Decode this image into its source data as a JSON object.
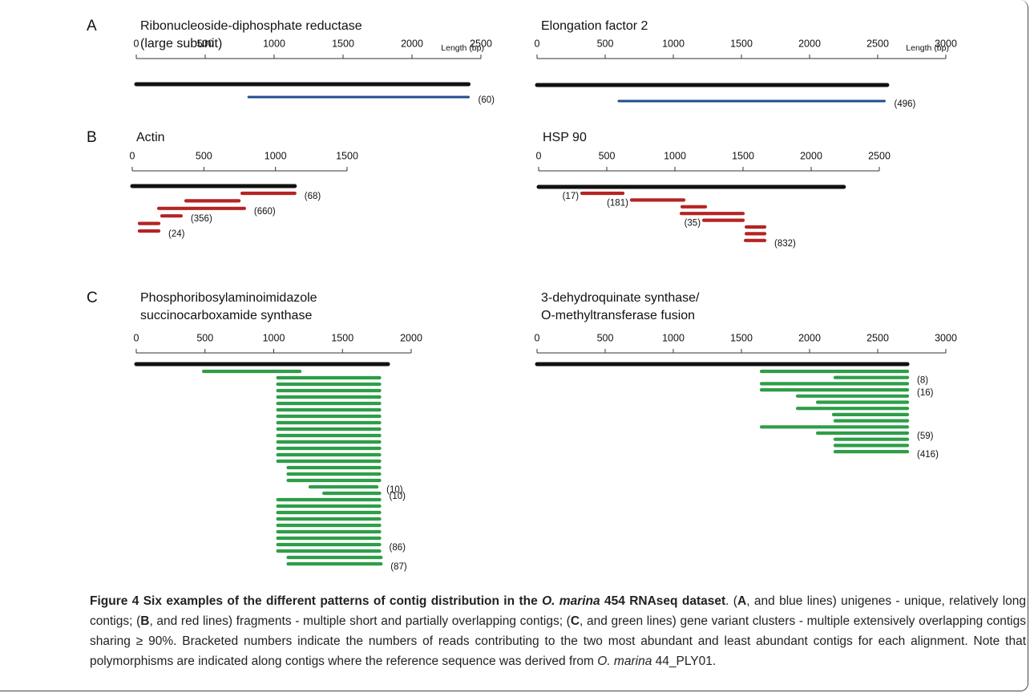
{
  "figure": {
    "panels": [
      {
        "letter": "A",
        "title": [
          "Ribonucleoside-diphosphate reductase",
          "(large subunit)"
        ],
        "length_label": "Length (bp)",
        "xlim": [
          0,
          2500
        ],
        "xticks": [
          0,
          500,
          1000,
          1500,
          2000,
          2500
        ],
        "reference": {
          "start": 0,
          "end": 2410
        },
        "color": "#1f4e8c",
        "contigs": [
          {
            "start": 815,
            "end": 2410,
            "reads": "(60)"
          }
        ]
      },
      {
        "title": [
          "Elongation factor 2"
        ],
        "length_label": "Length (bp)",
        "xlim": [
          0,
          3000
        ],
        "xticks": [
          0,
          500,
          1000,
          1500,
          2000,
          2500,
          3000
        ],
        "reference": {
          "start": 0,
          "end": 2570
        },
        "color": "#1f4e8c",
        "contigs": [
          {
            "start": 600,
            "end": 2550,
            "reads": "(496)"
          }
        ]
      },
      {
        "letter": "B",
        "title": [
          "Actin"
        ],
        "xlim": [
          0,
          1500
        ],
        "xticks": [
          0,
          500,
          1000,
          1500
        ],
        "reference": {
          "start": 0,
          "end": 1135
        },
        "color": "#b52424",
        "contigs": [
          {
            "start": 767,
            "end": 1135,
            "reads": "(68)"
          },
          {
            "start": 375,
            "end": 745
          },
          {
            "start": 185,
            "end": 783,
            "reads": "(660)"
          },
          {
            "start": 207,
            "end": 341,
            "reads": "(356)"
          },
          {
            "start": 50,
            "end": 185
          },
          {
            "start": 50,
            "end": 185,
            "reads": "(24)"
          }
        ]
      },
      {
        "title": [
          "HSP 90"
        ],
        "xlim": [
          0,
          2500
        ],
        "xticks": [
          0,
          500,
          1000,
          1500,
          2000,
          2500
        ],
        "reference": {
          "start": 0,
          "end": 2240
        },
        "color": "#b52424",
        "contigs": [
          {
            "start": 318,
            "end": 618,
            "reads": "(17)",
            "label_side": "left"
          },
          {
            "start": 682,
            "end": 1065,
            "reads": "(181)",
            "label_side": "left"
          },
          {
            "start": 1053,
            "end": 1224
          },
          {
            "start": 1047,
            "end": 1500
          },
          {
            "start": 1212,
            "end": 1500,
            "reads": "(35)",
            "label_side": "left"
          },
          {
            "start": 1524,
            "end": 1659
          },
          {
            "start": 1524,
            "end": 1659
          },
          {
            "start": 1518,
            "end": 1659,
            "reads": "(832)"
          }
        ]
      },
      {
        "letter": "C",
        "title": [
          "Phosphoribosylaminoimidazole",
          "succinocarboxamide synthase"
        ],
        "xlim": [
          0,
          2000
        ],
        "xticks": [
          0,
          500,
          1000,
          1500,
          2000
        ],
        "reference": {
          "start": 0,
          "end": 1831
        },
        "color": "#2e9e48",
        "contigs": [
          {
            "start": 490,
            "end": 1190
          },
          {
            "start": 1030,
            "end": 1770
          },
          {
            "start": 1030,
            "end": 1770
          },
          {
            "start": 1030,
            "end": 1770
          },
          {
            "start": 1030,
            "end": 1770
          },
          {
            "start": 1030,
            "end": 1770
          },
          {
            "start": 1030,
            "end": 1770
          },
          {
            "start": 1030,
            "end": 1770
          },
          {
            "start": 1030,
            "end": 1770
          },
          {
            "start": 1030,
            "end": 1770
          },
          {
            "start": 1030,
            "end": 1770
          },
          {
            "start": 1030,
            "end": 1770
          },
          {
            "start": 1030,
            "end": 1770
          },
          {
            "start": 1030,
            "end": 1770
          },
          {
            "start": 1030,
            "end": 1770
          },
          {
            "start": 1105,
            "end": 1770
          },
          {
            "start": 1105,
            "end": 1770
          },
          {
            "start": 1105,
            "end": 1770
          },
          {
            "start": 1265,
            "end": 1750,
            "reads": "(10)"
          },
          {
            "start": 1365,
            "end": 1770,
            "reads": "(10)"
          },
          {
            "start": 1030,
            "end": 1770
          },
          {
            "start": 1030,
            "end": 1770
          },
          {
            "start": 1030,
            "end": 1770
          },
          {
            "start": 1030,
            "end": 1770
          },
          {
            "start": 1030,
            "end": 1770
          },
          {
            "start": 1030,
            "end": 1770
          },
          {
            "start": 1030,
            "end": 1770
          },
          {
            "start": 1030,
            "end": 1770,
            "reads": "(86)"
          },
          {
            "start": 1030,
            "end": 1770
          },
          {
            "start": 1105,
            "end": 1780
          },
          {
            "start": 1105,
            "end": 1780,
            "reads": "(87)"
          }
        ]
      },
      {
        "title": [
          "3-dehydroquinate synthase/",
          "O-methyltransferase fusion"
        ],
        "xlim": [
          0,
          3000
        ],
        "xticks": [
          0,
          500,
          1000,
          1500,
          2000,
          2500,
          3000
        ],
        "reference": {
          "start": 0,
          "end": 2718
        },
        "color": "#2e9e48",
        "contigs": [
          {
            "start": 1647,
            "end": 2718
          },
          {
            "start": 2188,
            "end": 2718,
            "reads": "(8)"
          },
          {
            "start": 1647,
            "end": 2718
          },
          {
            "start": 1647,
            "end": 2718,
            "reads": "(16)"
          },
          {
            "start": 1912,
            "end": 2718
          },
          {
            "start": 2059,
            "end": 2718
          },
          {
            "start": 1912,
            "end": 2718
          },
          {
            "start": 2176,
            "end": 2718
          },
          {
            "start": 2188,
            "end": 2718
          },
          {
            "start": 1647,
            "end": 2718
          },
          {
            "start": 2059,
            "end": 2718,
            "reads": "(59)"
          },
          {
            "start": 2188,
            "end": 2718
          },
          {
            "start": 2188,
            "end": 2718
          },
          {
            "start": 2188,
            "end": 2718,
            "reads": "(416)"
          }
        ]
      }
    ],
    "caption": [
      {
        "text": "Figure 4 Six examples of the different patterns of contig distribution in the ",
        "style": "bold"
      },
      {
        "text": "O. marina",
        "style": "bold-italic"
      },
      {
        "text": " 454 RNAseq dataset",
        "style": "bold"
      },
      {
        "text": ". (",
        "style": "normal"
      },
      {
        "text": "A",
        "style": "bold"
      },
      {
        "text": ", and blue lines) unigenes - unique, relatively long contigs; (",
        "style": "normal"
      },
      {
        "text": "B",
        "style": "bold"
      },
      {
        "text": ", and red lines) fragments - multiple short and partially overlapping contigs; (",
        "style": "normal"
      },
      {
        "text": "C",
        "style": "bold"
      },
      {
        "text": ", and green lines) gene variant clusters - multiple extensively overlapping contigs sharing ≥ 90%. Bracketed numbers indicate the numbers of reads contributing to the two most abundant and least abundant contigs for each alignment. Note that polymorphisms are indicated along contigs where the reference sequence was derived from ",
        "style": "normal"
      },
      {
        "text": "O. marina",
        "style": "italic"
      },
      {
        "text": " 44_PLY01.",
        "style": "normal"
      }
    ]
  }
}
